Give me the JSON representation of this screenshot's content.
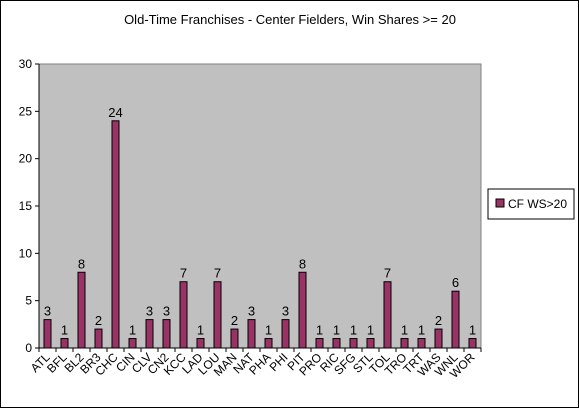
{
  "chart_data": {
    "type": "bar",
    "title": "Old-Time Franchises - Center Fielders, Win Shares >= 20",
    "xlabel": "",
    "ylabel": "",
    "ylim": [
      0,
      30
    ],
    "yticks": [
      0,
      5,
      10,
      15,
      20,
      25,
      30
    ],
    "grid": false,
    "legend": "right",
    "plot_background": "#c0c0c0",
    "bar_color": "#993366",
    "categories": [
      "ATL",
      "BFL",
      "BL2",
      "BR3",
      "CHC",
      "CIN",
      "CLV",
      "CN2",
      "KCC",
      "LAD",
      "LOU",
      "MAN",
      "NAT",
      "PHA",
      "PHI",
      "PIT",
      "PRO",
      "RIC",
      "SFG",
      "STL",
      "TOL",
      "TRO",
      "TRT",
      "WAS",
      "WNL",
      "WOR"
    ],
    "series": [
      {
        "name": "CF WS>20",
        "values": [
          3,
          1,
          8,
          2,
          24,
          1,
          3,
          3,
          7,
          1,
          7,
          2,
          3,
          1,
          3,
          8,
          1,
          1,
          1,
          1,
          7,
          1,
          1,
          2,
          6,
          1
        ]
      }
    ]
  }
}
